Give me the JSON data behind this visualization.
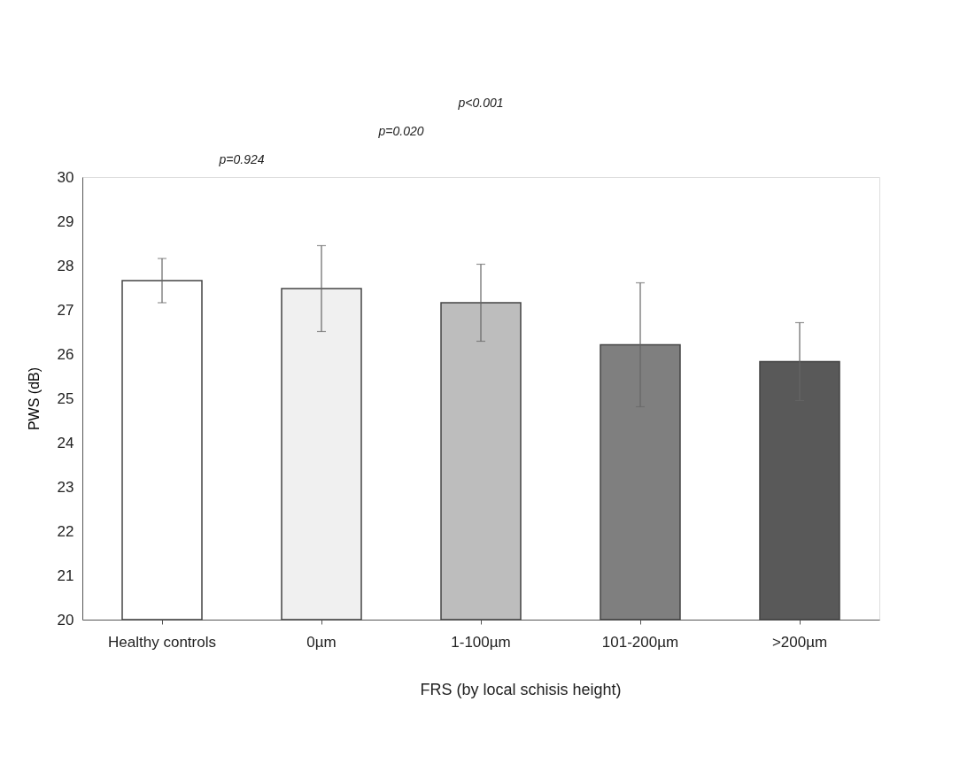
{
  "chart_data": {
    "type": "bar",
    "ylabel": "PWS (dB)",
    "xlabel": "FRS (by local schisis height)",
    "categories": [
      "Healthy controls",
      "0µm",
      "1-100µm",
      "101-200µm",
      ">200µm"
    ],
    "values": [
      27.66,
      27.48,
      27.16,
      26.21,
      25.83
    ],
    "errors": [
      0.5,
      0.97,
      0.87,
      1.4,
      0.88
    ],
    "colors": [
      "#ffffff",
      "#f0f0f0",
      "#bdbdbd",
      "#7f7f7f",
      "#595959"
    ],
    "ylim": [
      20,
      30
    ],
    "yticks": [
      20,
      21,
      22,
      23,
      24,
      25,
      26,
      27,
      28,
      29,
      30
    ],
    "grid": false,
    "legend": false,
    "annotations": [
      "p=0.924",
      "p=0.020",
      "p<0.001"
    ]
  }
}
